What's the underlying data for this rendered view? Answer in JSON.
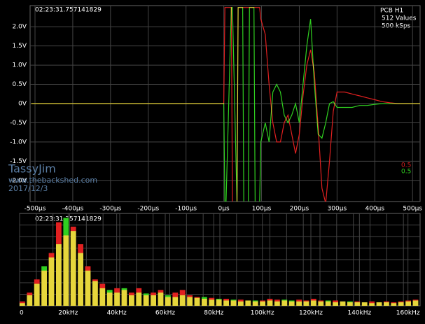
{
  "chart_data": [
    {
      "type": "line",
      "timestamp": "02:23:31.757141829",
      "info": [
        "PCB H1",
        "512 Values",
        "500 kSps"
      ],
      "watermark": [
        "TassyJim",
        "www.thebackshed.com",
        "2017/12/3"
      ],
      "x": [
        -510,
        -400,
        -300,
        -200,
        -100,
        0,
        3,
        6,
        20,
        23,
        35,
        38,
        50,
        53,
        65,
        68,
        80,
        83,
        95,
        98,
        110,
        120,
        130,
        140,
        150,
        160,
        170,
        180,
        190,
        200,
        210,
        220,
        230,
        240,
        250,
        260,
        270,
        280,
        290,
        300,
        320,
        340,
        360,
        380,
        400,
        420,
        440,
        460,
        480,
        500,
        520
      ],
      "series": [
        {
          "name": "0.5",
          "color": "#e02020",
          "values": [
            0,
            0,
            0,
            0,
            0,
            0,
            2.5,
            2.5,
            2.5,
            -2.6,
            -2.6,
            2.5,
            2.5,
            2.5,
            2.5,
            2.5,
            2.5,
            2.5,
            2.5,
            2.2,
            1.8,
            0.5,
            -0.5,
            -1.0,
            -1.0,
            -0.5,
            -0.3,
            -0.8,
            -1.3,
            -0.8,
            0.2,
            1.0,
            1.4,
            0.8,
            -0.6,
            -2.2,
            -2.6,
            -1.5,
            -0.2,
            0.3,
            0.3,
            0.25,
            0.2,
            0.15,
            0.1,
            0.05,
            0.02,
            0,
            0,
            0,
            0
          ]
        },
        {
          "name": "0.5",
          "color": "#30d020",
          "values": [
            0,
            0,
            0,
            0,
            0,
            0,
            -2.6,
            -2.6,
            2.5,
            2.5,
            -2.6,
            2.5,
            2.5,
            -2.6,
            -2.6,
            2.5,
            2.5,
            -2.6,
            -2.6,
            -1.0,
            -0.5,
            -1.0,
            0.3,
            0.5,
            0.3,
            -0.3,
            -0.5,
            -0.3,
            0,
            -0.5,
            0.5,
            1.5,
            2.2,
            0.5,
            -0.8,
            -0.9,
            -0.5,
            0,
            0.05,
            -0.1,
            -0.1,
            -0.1,
            -0.05,
            -0.05,
            -0.02,
            0,
            0,
            0,
            0,
            0,
            0
          ]
        }
      ],
      "xlim": [
        -513,
        520
      ],
      "xticks": [
        {
          "value": -500,
          "label": "-500µs"
        },
        {
          "value": -400,
          "label": "-400µs"
        },
        {
          "value": -300,
          "label": "-300µs"
        },
        {
          "value": -200,
          "label": "-200µs"
        },
        {
          "value": -100,
          "label": "-100µs"
        },
        {
          "value": 0,
          "label": "0µs"
        },
        {
          "value": 100,
          "label": "100µs"
        },
        {
          "value": 200,
          "label": "200µs"
        },
        {
          "value": 300,
          "label": "300µs"
        },
        {
          "value": 400,
          "label": "400µs"
        },
        {
          "value": 500,
          "label": "500µs"
        }
      ],
      "ylim": [
        -2.55,
        2.55
      ],
      "yticks": [
        {
          "value": 2,
          "label": "2.0V"
        },
        {
          "value": 1.5,
          "label": "1.5V"
        },
        {
          "value": 1,
          "label": "1.0V"
        },
        {
          "value": 0.5,
          "label": "0.5V"
        },
        {
          "value": 0,
          "label": "0V"
        },
        {
          "value": -0.5,
          "label": "-0.5V"
        },
        {
          "value": -1,
          "label": "-1.0V"
        },
        {
          "value": -1.5,
          "label": "-1.5V"
        },
        {
          "value": -2,
          "label": "-2.0V"
        }
      ],
      "grid": true
    },
    {
      "type": "bar",
      "timestamp": "02:23:31.757141829",
      "x": [
        0,
        3,
        6,
        9,
        12,
        15,
        18,
        21,
        24,
        27,
        30,
        33,
        36,
        39,
        42,
        45,
        48,
        51,
        54,
        57,
        60,
        63,
        66,
        69,
        72,
        75,
        78,
        81,
        84,
        87,
        90,
        93,
        96,
        99,
        102,
        105,
        108,
        111,
        114,
        117,
        120,
        123,
        126,
        129,
        132,
        135,
        138,
        141,
        144,
        147,
        150,
        153,
        156,
        159,
        162
      ],
      "series": [
        {
          "color": "#e02020",
          "values": [
            5,
            15,
            30,
            40,
            60,
            95,
            80,
            90,
            70,
            45,
            30,
            25,
            15,
            20,
            18,
            15,
            20,
            12,
            15,
            18,
            10,
            15,
            18,
            12,
            10,
            8,
            9,
            7,
            8,
            6,
            7,
            6,
            5,
            6,
            8,
            7,
            6,
            5,
            7,
            6,
            8,
            6,
            5,
            6,
            5,
            4,
            5,
            4,
            5,
            4,
            5,
            4,
            5,
            6,
            7
          ]
        },
        {
          "color": "#30d020",
          "values": [
            3,
            12,
            25,
            45,
            55,
            70,
            100,
            85,
            60,
            40,
            28,
            20,
            18,
            15,
            20,
            12,
            15,
            14,
            12,
            15,
            12,
            10,
            12,
            10,
            9,
            10,
            7,
            8,
            6,
            7,
            5,
            6,
            6,
            5,
            6,
            5,
            7,
            6,
            5,
            5,
            6,
            5,
            6,
            4,
            5,
            5,
            4,
            4,
            3,
            4,
            4,
            3,
            4,
            5,
            6
          ]
        }
      ],
      "xlim": [
        0,
        165
      ],
      "xticks": [
        0,
        {
          "value": 20,
          "label": "20kHz"
        },
        {
          "value": 40,
          "label": "40kHz"
        },
        {
          "value": 60,
          "label": "60kHz"
        },
        {
          "value": 80,
          "label": "80kHz"
        },
        {
          "value": 100,
          "label": "100kHz"
        },
        {
          "value": 120,
          "label": "120kHz"
        },
        {
          "value": 140,
          "label": "140kHz"
        },
        {
          "value": 160,
          "label": "160kHz"
        }
      ],
      "ylim": [
        0,
        105
      ],
      "grid": true
    }
  ]
}
